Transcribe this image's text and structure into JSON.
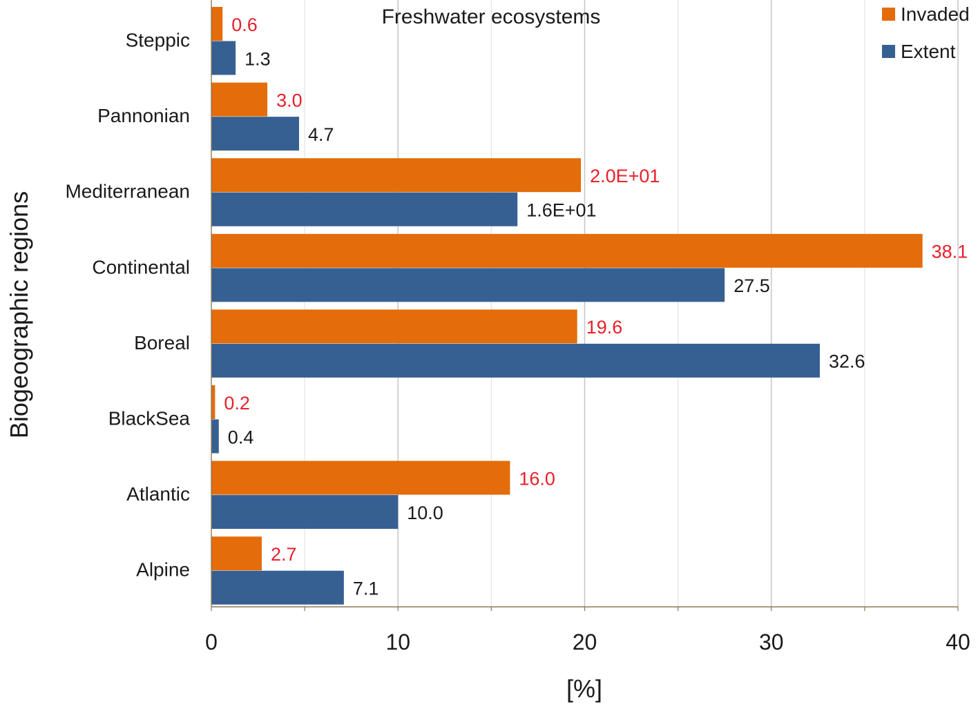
{
  "chart_data": {
    "type": "bar",
    "orientation": "horizontal",
    "title": "Freshwater ecosystems",
    "xlabel": "[%]",
    "ylabel": "Biogeographic regions",
    "xlim": [
      0,
      40
    ],
    "xticks": [
      0,
      10,
      20,
      30,
      40
    ],
    "grid": true,
    "legend_position": "top-right",
    "categories": [
      "Steppic",
      "Pannonian",
      "Mediterranean",
      "Continental",
      "Boreal",
      "BlackSea",
      "Atlantic",
      "Alpine"
    ],
    "series": [
      {
        "name": "Invaded",
        "color": "#E46C0A",
        "label_color": "#E8202A",
        "values": [
          0.6,
          3.0,
          19.8,
          38.1,
          19.6,
          0.2,
          16.0,
          2.7
        ],
        "labels": [
          "0.6",
          "3.0",
          "2.0E+01",
          "38.1",
          "19.6",
          "0.2",
          "16.0",
          "2.7"
        ]
      },
      {
        "name": "Extent",
        "color": "#376092",
        "label_color": "#1a1a1a",
        "values": [
          1.3,
          4.7,
          16.4,
          27.5,
          32.6,
          0.4,
          10.0,
          7.1
        ],
        "labels": [
          "1.3",
          "4.7",
          "1.6E+01",
          "27.5",
          "32.6",
          "0.4",
          "10.0",
          "7.1"
        ]
      }
    ]
  }
}
